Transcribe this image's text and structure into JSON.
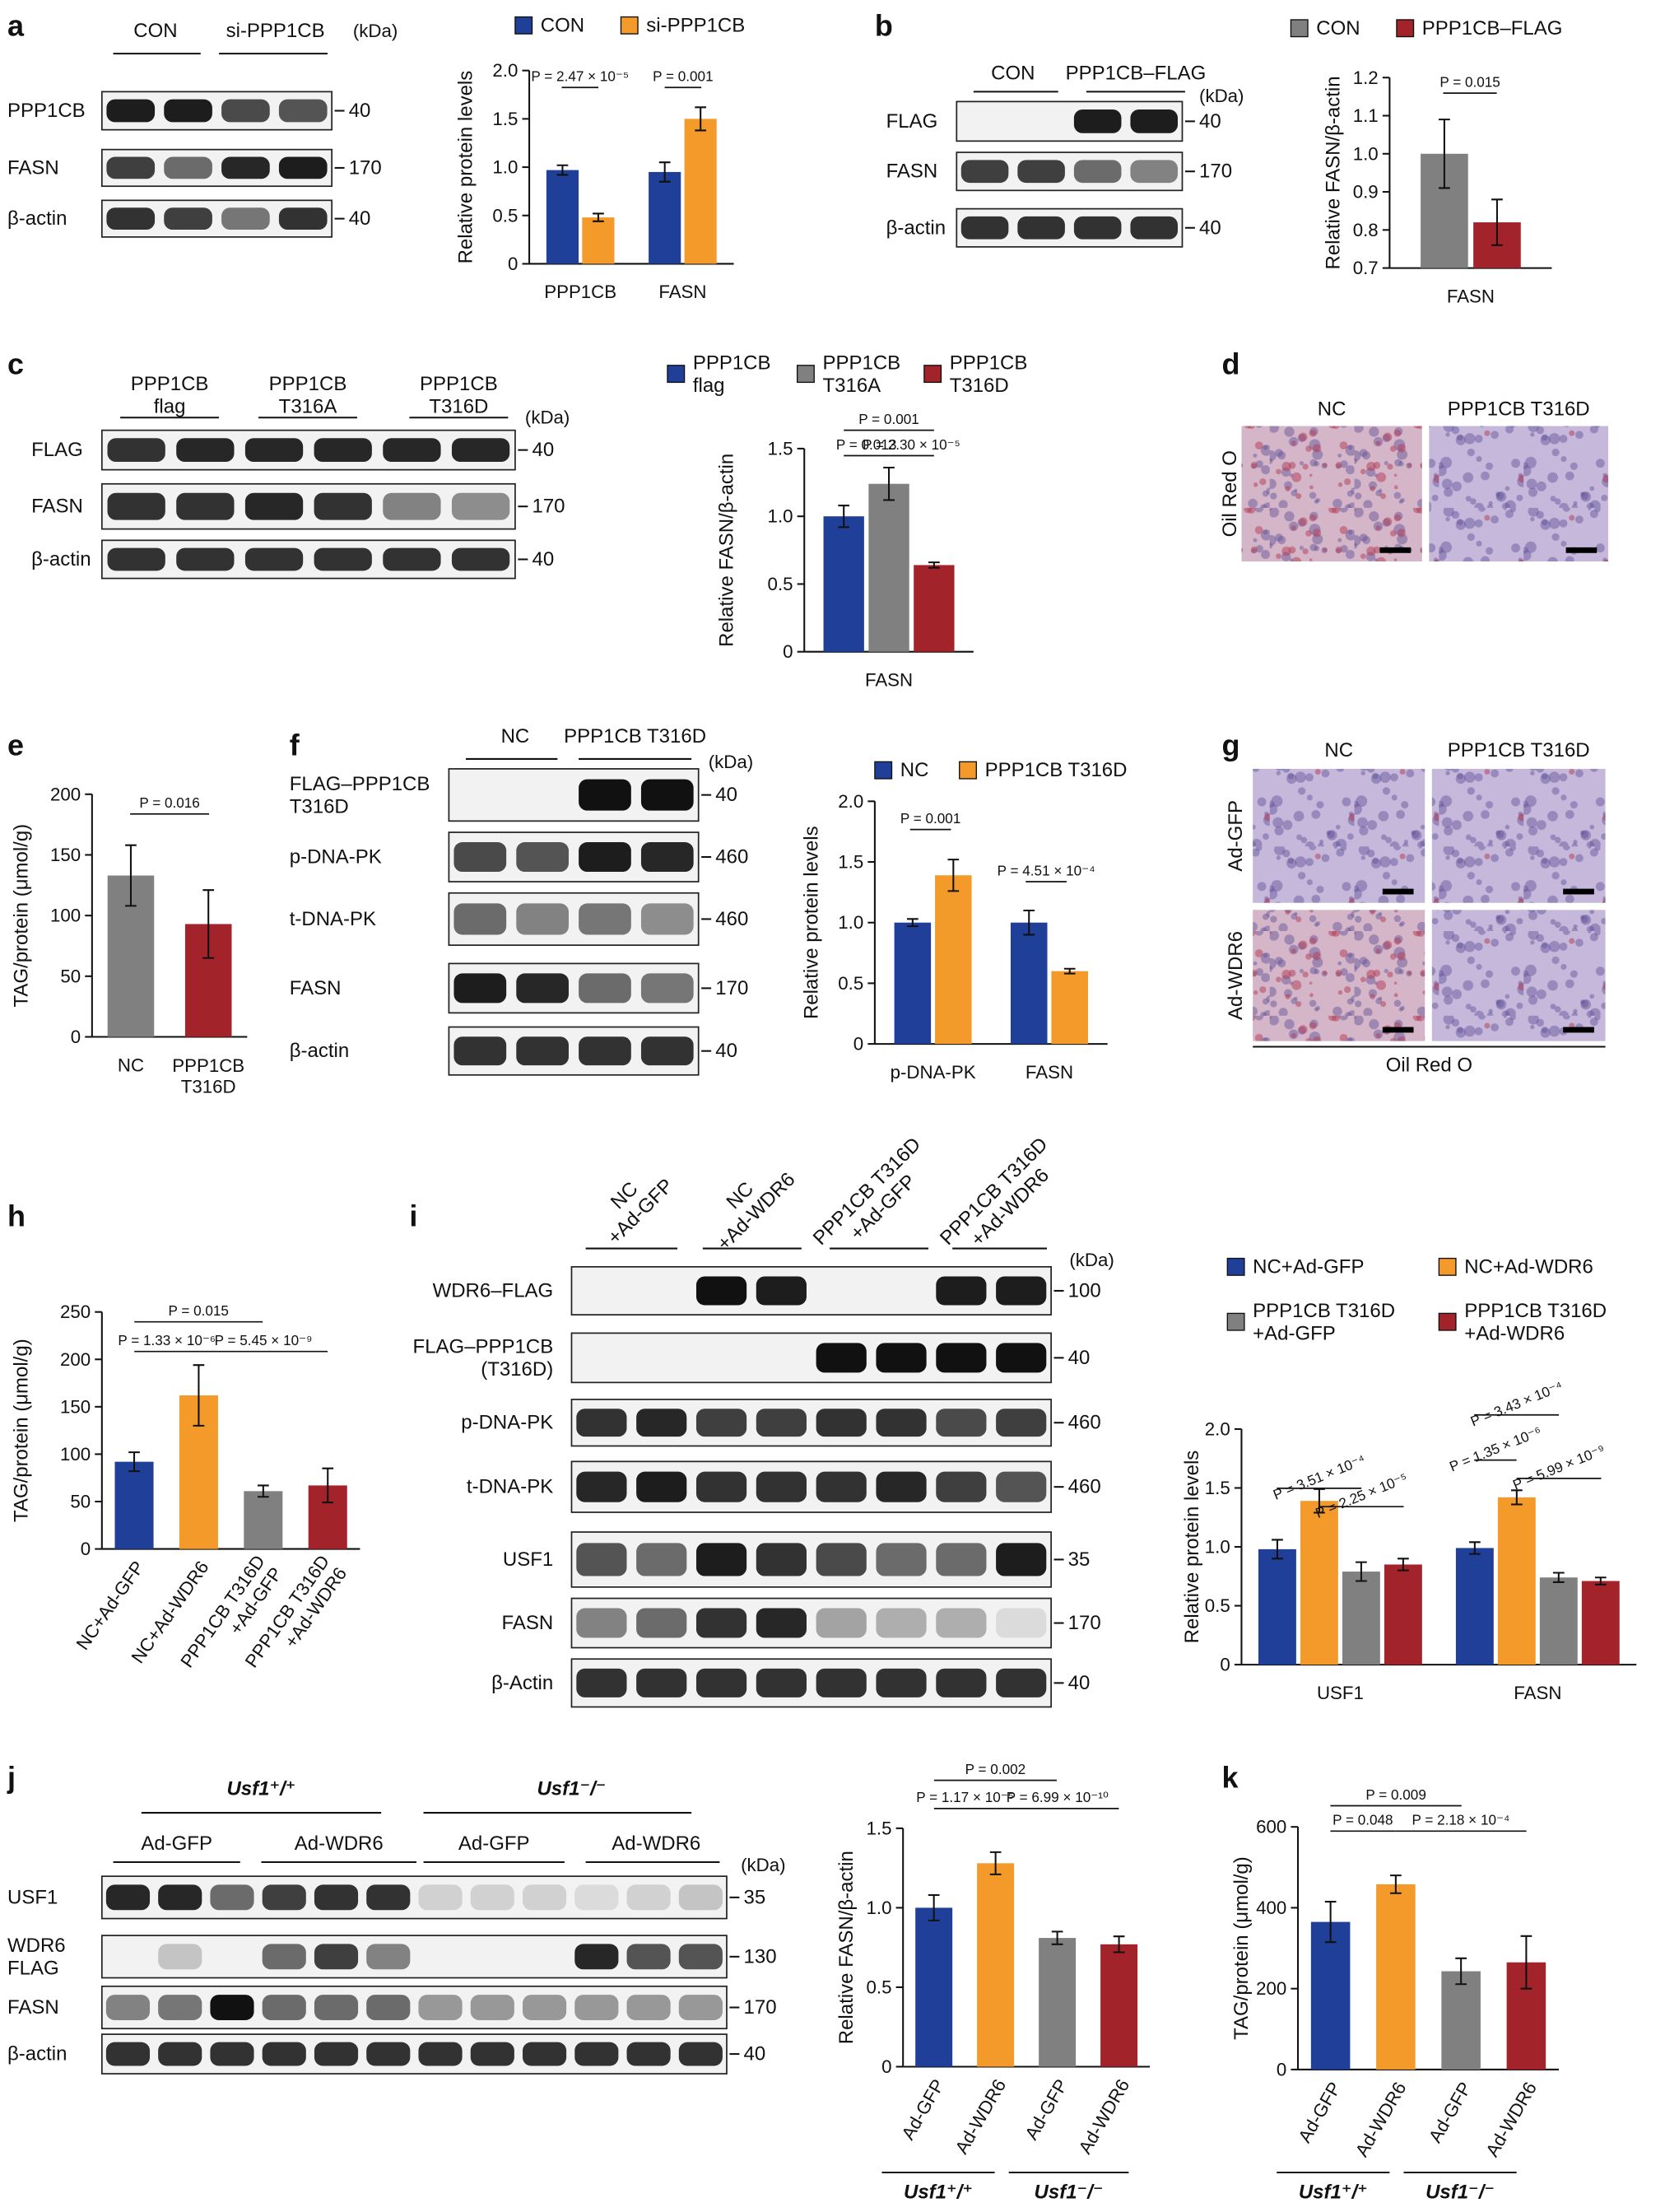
{
  "panel_labels": [
    "a",
    "b",
    "c",
    "d",
    "e",
    "f",
    "g",
    "h",
    "i",
    "j",
    "k"
  ],
  "blots": [
    {
      "columns": [
        "CON",
        "si-PPP1CB"
      ],
      "unit": "(kDa)",
      "rows": [
        {
          "label": "PPP1CB",
          "kda": 40
        },
        {
          "label": "FASN",
          "kda": 170
        },
        {
          "label": "β-actin",
          "kda": 40
        }
      ]
    },
    {
      "columns": [
        "CON",
        "PPP1CB–FLAG"
      ],
      "unit": "(kDa)",
      "rows": [
        {
          "label": "FLAG",
          "kda": 40
        },
        {
          "label": "FASN",
          "kda": 170
        },
        {
          "label": "β-actin",
          "kda": 40
        }
      ]
    },
    {
      "columns": [
        "PPP1CB\nflag",
        "PPP1CB\nT316A",
        "PPP1CB\nT316D"
      ],
      "unit": "(kDa)",
      "rows": [
        {
          "label": "FLAG",
          "kda": 40
        },
        {
          "label": "FASN",
          "kda": 170
        },
        {
          "label": "β-actin",
          "kda": 40
        }
      ]
    },
    {
      "columns": [
        "NC",
        "PPP1CB T316D"
      ],
      "unit": "(kDa)",
      "rows": [
        {
          "label": "FLAG–PPP1CB\nT316D",
          "kda": 40
        },
        {
          "label": "p-DNA-PK",
          "kda": 460
        },
        {
          "label": "t-DNA-PK",
          "kda": 460
        },
        {
          "label": "FASN",
          "kda": 170
        },
        {
          "label": "β-actin",
          "kda": 40
        }
      ]
    },
    {
      "columns": [
        "NC\n+Ad-GFP",
        "NC\n+Ad-WDR6",
        "PPP1CB T316D\n+Ad-GFP",
        "PPP1CB T316D\n+Ad-WDR6"
      ],
      "unit": "(kDa)",
      "rows": [
        {
          "label": "WDR6–FLAG",
          "kda": 100
        },
        {
          "label": "FLAG–PPP1CB\n(T316D)",
          "kda": 40
        },
        {
          "label": "p-DNA-PK",
          "kda": 460
        },
        {
          "label": "t-DNA-PK",
          "kda": 460
        },
        {
          "label": "USF1",
          "kda": 35
        },
        {
          "label": "FASN",
          "kda": 170
        },
        {
          "label": "β-Actin",
          "kda": 40
        }
      ]
    },
    {
      "groups": [
        "Usf1⁺/⁺",
        "Usf1⁻/⁻"
      ],
      "columns": [
        "Ad-GFP",
        "Ad-WDR6",
        "Ad-GFP",
        "Ad-WDR6"
      ],
      "unit": "(kDa)",
      "rows": [
        {
          "label": "USF1",
          "kda": 35
        },
        {
          "label": "WDR6\nFLAG",
          "kda": 130
        },
        {
          "label": "FASN",
          "kda": 170
        },
        {
          "label": "β-actin",
          "kda": 40
        }
      ]
    }
  ],
  "micrographs": [
    {
      "columns": [
        "NC",
        "PPP1CB T316D"
      ],
      "rows": [
        "Oil Red O"
      ]
    },
    {
      "columns": [
        "NC",
        "PPP1CB T316D"
      ],
      "rows": [
        "Ad-GFP",
        "Ad-WDR6"
      ],
      "footer": "Oil Red O"
    }
  ],
  "chart_data": [
    {
      "type": "bar",
      "y_label": "Relative protein levels",
      "categories": [
        "PPP1CB",
        "FASN"
      ],
      "series": [
        {
          "name": "CON",
          "color": "#1f3f99",
          "values": [
            0.97,
            0.95
          ],
          "errors": [
            0.05,
            0.1
          ]
        },
        {
          "name": "si-PPP1CB",
          "color": "#f39a2b",
          "values": [
            0.48,
            1.5
          ],
          "errors": [
            0.04,
            0.12
          ]
        }
      ],
      "ylim": [
        0,
        2
      ],
      "yticks": [
        0,
        0.5,
        {
          "value": 1,
          "label": "1.0"
        },
        1.5,
        {
          "value": 2,
          "label": "2.0"
        }
      ],
      "annotations": [
        "P = 2.47 × 10⁻⁵",
        "P = 0.001"
      ]
    },
    {
      "type": "bar",
      "y_label": "Relative FASN/β-actin",
      "categories": [
        "FASN"
      ],
      "series": [
        {
          "name": "CON",
          "color": "#808080",
          "values": [
            1.0
          ],
          "errors": [
            0.09
          ]
        },
        {
          "name": "PPP1CB–FLAG",
          "color": "#a3232a",
          "values": [
            0.82
          ],
          "errors": [
            0.06
          ]
        }
      ],
      "ylim": [
        0.7,
        1.2
      ],
      "yticks": [
        0.7,
        0.8,
        0.9,
        {
          "value": 1,
          "label": "1.0"
        },
        1.1,
        1.2
      ],
      "annotations": [
        "P = 0.015"
      ]
    },
    {
      "type": "bar",
      "y_label": "Relative FASN/β-actin",
      "categories": [
        "FASN"
      ],
      "series": [
        {
          "name": "PPP1CB\nflag",
          "color": "#1f3f99",
          "values": [
            1.0
          ],
          "errors": [
            0.08
          ]
        },
        {
          "name": "PPP1CB\nT316A",
          "color": "#808080",
          "values": [
            1.24
          ],
          "errors": [
            0.12
          ]
        },
        {
          "name": "PPP1CB\nT316D",
          "color": "#a3232a",
          "values": [
            0.64
          ],
          "errors": [
            0.02
          ]
        }
      ],
      "ylim": [
        0,
        1.5
      ],
      "yticks": [
        0,
        0.5,
        {
          "value": 1,
          "label": "1.0"
        },
        1.5
      ],
      "annotations": [
        "P = 0.001",
        "P = 0.013",
        "P = 2.30 × 10⁻⁵"
      ]
    },
    {
      "type": "bar",
      "y_label": "TAG/protein (μmol/g)",
      "categories": [
        "NC",
        "PPP1CB\nT316D"
      ],
      "values": [
        133,
        93
      ],
      "errors": [
        25,
        28
      ],
      "colors": [
        "#808080",
        "#a3232a"
      ],
      "ylim": [
        0,
        200
      ],
      "yticks": [
        0,
        50,
        100,
        150,
        200
      ],
      "annotations": [
        "P = 0.016"
      ]
    },
    {
      "type": "bar",
      "y_label": "Relative protein levels",
      "categories": [
        "p-DNA-PK",
        "FASN"
      ],
      "series": [
        {
          "name": "NC",
          "color": "#1f3f99",
          "values": [
            1.0,
            1.0
          ],
          "errors": [
            0.03,
            0.1
          ]
        },
        {
          "name": "PPP1CB T316D",
          "color": "#f39a2b",
          "values": [
            1.39,
            0.6
          ],
          "errors": [
            0.13,
            0.02
          ]
        }
      ],
      "ylim": [
        0,
        2
      ],
      "yticks": [
        0,
        0.5,
        {
          "value": 1,
          "label": "1.0"
        },
        1.5,
        {
          "value": 2,
          "label": "2.0"
        }
      ],
      "annotations": [
        "P = 0.001",
        "P = 4.51 × 10⁻⁴"
      ]
    },
    {
      "type": "bar",
      "y_label": "TAG/protein (μmol/g)",
      "categories": [
        "NC+Ad-GFP",
        "NC+Ad-WDR6",
        "PPP1CB T316D\n+Ad-GFP",
        "PPP1CB T316D\n+Ad-WDR6"
      ],
      "values": [
        92,
        162,
        61,
        67
      ],
      "errors": [
        10,
        32,
        6,
        18
      ],
      "colors": [
        "#1f3f99",
        "#f39a2b",
        "#808080",
        "#a3232a"
      ],
      "ylim": [
        0,
        250
      ],
      "yticks": [
        0,
        50,
        100,
        150,
        200,
        250
      ],
      "annotations": [
        "P = 0.015",
        "P = 1.33 × 10⁻⁶",
        "P = 5.45 × 10⁻⁹"
      ]
    },
    {
      "type": "bar",
      "y_label": "Relative protein levels",
      "categories": [
        "USF1",
        "FASN"
      ],
      "series": [
        {
          "name": "NC+Ad-GFP",
          "color": "#1f3f99",
          "values": [
            0.98,
            0.99
          ],
          "errors": [
            0.08,
            0.05
          ]
        },
        {
          "name": "NC+Ad-WDR6",
          "color": "#f39a2b",
          "values": [
            1.39,
            1.42
          ],
          "errors": [
            0.1,
            0.06
          ]
        },
        {
          "name": "PPP1CB T316D\n+Ad-GFP",
          "color": "#808080",
          "values": [
            0.79,
            0.74
          ],
          "errors": [
            0.08,
            0.04
          ]
        },
        {
          "name": "PPP1CB T316D\n+Ad-WDR6",
          "color": "#a3232a",
          "values": [
            0.85,
            0.71
          ],
          "errors": [
            0.05,
            0.03
          ]
        }
      ],
      "ylim": [
        0,
        2
      ],
      "yticks": [
        0,
        0.5,
        {
          "value": 1,
          "label": "1.0"
        },
        1.5,
        {
          "value": 2,
          "label": "2.0"
        }
      ],
      "annotations": [
        "P = 3.51 × 10⁻⁴",
        "P = 2.25 × 10⁻⁵",
        "P = 3.43 × 10⁻⁴",
        "P = 1.35 × 10⁻⁶",
        "P = 5.99 × 10⁻⁹"
      ]
    },
    {
      "type": "bar",
      "y_label": "Relative FASN/β-actin",
      "categories": [
        "Ad-GFP",
        "Ad-WDR6",
        "Ad-GFP",
        "Ad-WDR6"
      ],
      "values": [
        1.0,
        1.28,
        0.81,
        0.77
      ],
      "errors": [
        0.08,
        0.07,
        0.04,
        0.05
      ],
      "colors": [
        "#1f3f99",
        "#f39a2b",
        "#808080",
        "#a3232a"
      ],
      "ylim": [
        0,
        1.5
      ],
      "yticks": [
        0,
        0.5,
        {
          "value": 1,
          "label": "1.0"
        },
        1.5
      ],
      "group_labels": [
        "Usf1⁺/⁺",
        "Usf1⁻/⁻"
      ],
      "annotations": [
        "P = 0.002",
        "P = 1.17 × 10⁻⁵",
        "P = 6.99 × 10⁻¹⁰"
      ]
    },
    {
      "type": "bar",
      "y_label": "TAG/protein (μmol/g)",
      "categories": [
        "Ad-GFP",
        "Ad-WDR6",
        "Ad-GFP",
        "Ad-WDR6"
      ],
      "values": [
        365,
        458,
        243,
        265
      ],
      "errors": [
        50,
        22,
        32,
        65
      ],
      "colors": [
        "#1f3f99",
        "#f39a2b",
        "#808080",
        "#a3232a"
      ],
      "ylim": [
        0,
        600
      ],
      "yticks": [
        0,
        200,
        400,
        600
      ],
      "group_labels": [
        "Usf1⁺/⁺",
        "Usf1⁻/⁻"
      ],
      "annotations": [
        "P = 0.009",
        "P = 0.048",
        "P = 2.18 × 10⁻⁴"
      ]
    }
  ]
}
